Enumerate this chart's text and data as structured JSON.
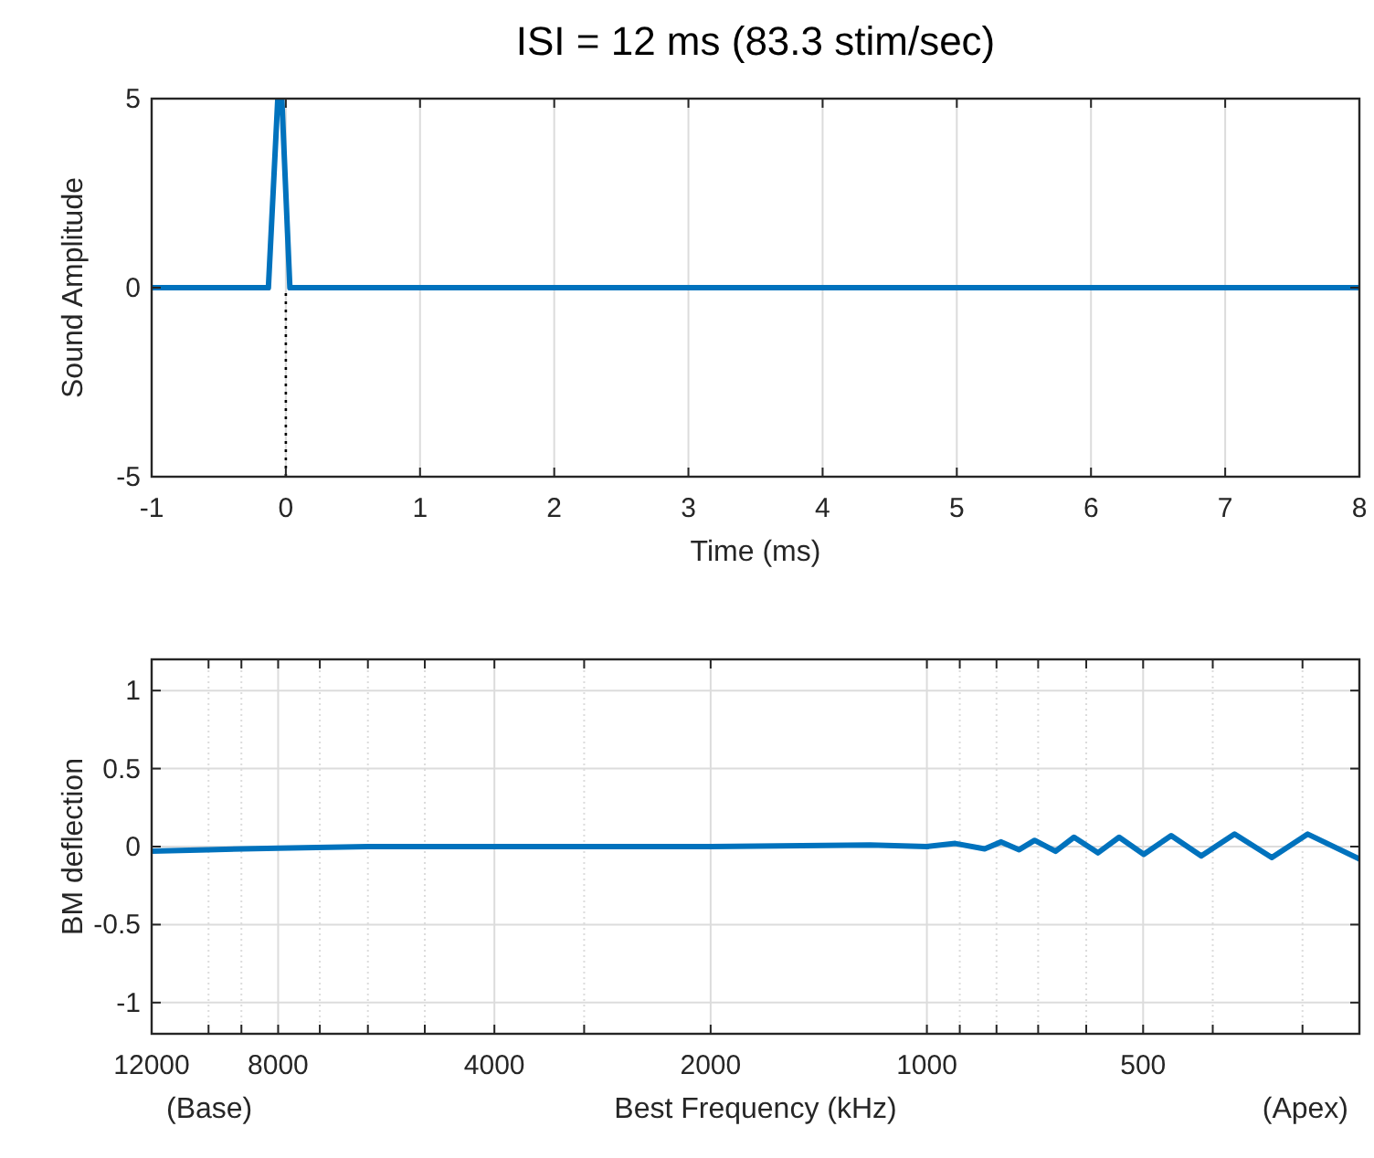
{
  "chart_data": [
    {
      "type": "line",
      "title": "ISI = 12 ms (83.3 stim/sec)",
      "xlabel": "Time (ms)",
      "ylabel": "Sound Amplitude",
      "xlim": [
        -1,
        8
      ],
      "ylim": [
        -5,
        5
      ],
      "xticks": [
        -1,
        0,
        1,
        2,
        3,
        4,
        5,
        6,
        7,
        8
      ],
      "yticks": [
        -5,
        0,
        5
      ],
      "grid": "x",
      "series": [
        {
          "color": "#0072bd",
          "x": [
            -1,
            -0.13,
            -0.06,
            -0.03,
            0.03,
            8
          ],
          "values": [
            0,
            0,
            5,
            5,
            0,
            0
          ]
        },
        {
          "color": "#000000",
          "line_style": "dotted",
          "x": [
            0,
            0
          ],
          "values": [
            -5,
            0
          ]
        }
      ]
    },
    {
      "type": "line",
      "xlabel": "Best Frequency (kHz)",
      "ylabel": "BM deflection",
      "log": "x",
      "xlim": [
        12000,
        250
      ],
      "ylim": [
        -1.2,
        1.2
      ],
      "grid": true,
      "xticks": [
        12000,
        {
          "value": 10000,
          "label": null
        },
        {
          "value": 9000,
          "label": null
        },
        8000,
        {
          "value": 7000,
          "label": null
        },
        {
          "value": 6000,
          "label": null
        },
        {
          "value": 5000,
          "label": null
        },
        4000,
        {
          "value": 3000,
          "label": null
        },
        2000,
        1000,
        {
          "value": 900,
          "label": null
        },
        {
          "value": 800,
          "label": null
        },
        {
          "value": 700,
          "label": null
        },
        {
          "value": 600,
          "label": null
        },
        500,
        {
          "value": 400,
          "label": null
        },
        {
          "value": 300,
          "label": null
        }
      ],
      "yticks": [
        -1,
        -0.5,
        0,
        0.5,
        1
      ],
      "annotations": [
        "(Base)",
        "(Apex)"
      ],
      "series": [
        {
          "color": "#0072bd",
          "x": [
            12000,
            10000,
            8000,
            6000,
            4000,
            2000,
            1200,
            1000,
            913,
            831,
            788,
            744,
            708,
            662,
            624,
            578,
            540,
            499,
            457,
            415,
            373,
            331,
            295,
            250
          ],
          "values": [
            -0.03,
            -0.02,
            -0.01,
            0,
            0,
            0,
            0.01,
            0,
            0.02,
            -0.015,
            0.03,
            -0.02,
            0.04,
            -0.03,
            0.06,
            -0.04,
            0.06,
            -0.05,
            0.07,
            -0.06,
            0.08,
            -0.07,
            0.08,
            -0.08
          ]
        }
      ]
    }
  ]
}
